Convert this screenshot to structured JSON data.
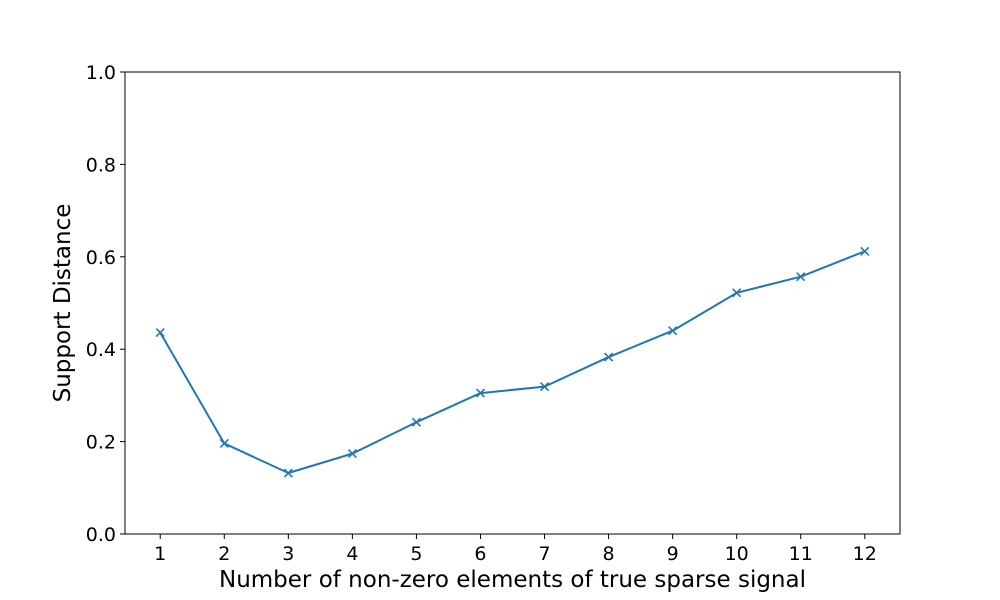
{
  "chart_data": {
    "type": "line",
    "xlabel": "Number of non-zero elements of true sparse signal",
    "ylabel": "Support Distance",
    "x": [
      1,
      2,
      3,
      4,
      5,
      6,
      7,
      8,
      9,
      10,
      11,
      12
    ],
    "series": [
      {
        "values": [
          0.436,
          0.196,
          0.132,
          0.174,
          0.242,
          0.305,
          0.319,
          0.383,
          0.44,
          0.522,
          0.557,
          0.612
        ],
        "color": "#1f77b4",
        "marker": "x"
      }
    ],
    "xlim": [
      0.45,
      12.55
    ],
    "ylim": [
      0.0,
      1.0
    ],
    "xticks": [
      "1",
      "2",
      "3",
      "4",
      "5",
      "6",
      "7",
      "8",
      "9",
      "10",
      "11",
      "12"
    ],
    "yticks": [
      "0.0",
      "0.2",
      "0.4",
      "0.6",
      "0.8",
      "1.0"
    ],
    "grid": false
  }
}
